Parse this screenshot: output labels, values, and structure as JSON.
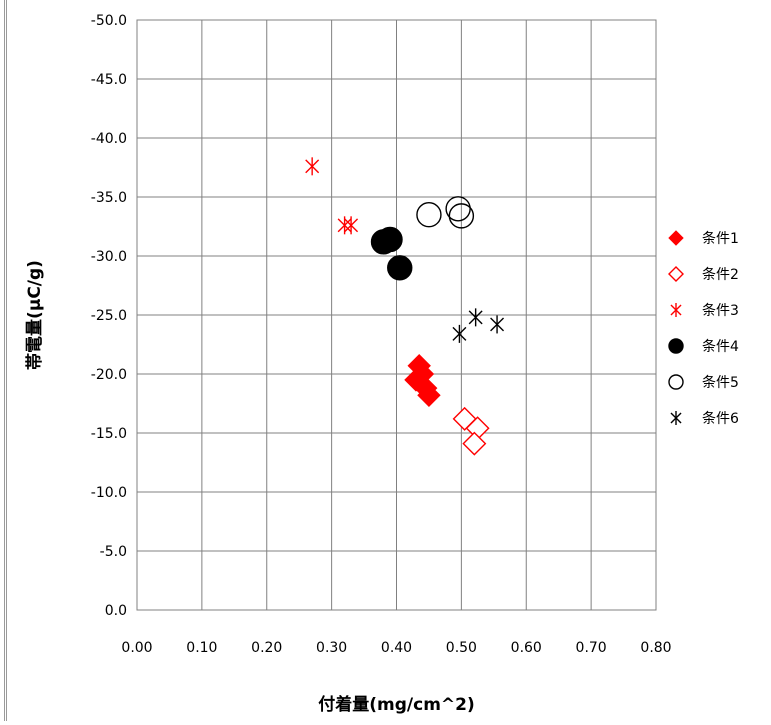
{
  "chart_data": {
    "type": "scatter",
    "title": "",
    "xlabel": "付着量(mg/cm^2)",
    "ylabel": "帯電量(μC/g)",
    "xlim": [
      0.0,
      0.8
    ],
    "ylim": [
      0.0,
      -50.0
    ],
    "x_ticks": [
      "0.00",
      "0.10",
      "0.20",
      "0.30",
      "0.40",
      "0.50",
      "0.60",
      "0.70",
      "0.80"
    ],
    "y_ticks": [
      "0.0",
      "-5.0",
      "-10.0",
      "-15.0",
      "-20.0",
      "-25.0",
      "-30.0",
      "-35.0",
      "-40.0",
      "-45.0",
      "-50.0"
    ],
    "grid": true,
    "legend_position": "right",
    "series": [
      {
        "name": "条件1",
        "marker": "diamond-filled",
        "color": "#ff0000",
        "points": [
          [
            0.435,
            -20.7
          ],
          [
            0.44,
            -20.0
          ],
          [
            0.43,
            -19.5
          ],
          [
            0.445,
            -18.8
          ],
          [
            0.45,
            -18.2
          ]
        ]
      },
      {
        "name": "条件2",
        "marker": "diamond-open",
        "color": "#ff0000",
        "points": [
          [
            0.505,
            -16.2
          ],
          [
            0.525,
            -15.4
          ],
          [
            0.52,
            -14.1
          ]
        ]
      },
      {
        "name": "条件3",
        "marker": "asterisk",
        "color": "#ff0000",
        "points": [
          [
            0.27,
            -37.6
          ],
          [
            0.32,
            -32.6
          ],
          [
            0.33,
            -32.6
          ]
        ]
      },
      {
        "name": "条件4",
        "marker": "circle-filled",
        "color": "#000000",
        "points": [
          [
            0.38,
            -31.2
          ],
          [
            0.39,
            -31.4
          ],
          [
            0.405,
            -29.0
          ]
        ]
      },
      {
        "name": "条件5",
        "marker": "circle-open",
        "color": "#000000",
        "points": [
          [
            0.45,
            -33.5
          ],
          [
            0.495,
            -34.0
          ],
          [
            0.5,
            -33.4
          ]
        ]
      },
      {
        "name": "条件6",
        "marker": "asterisk",
        "color": "#000000",
        "points": [
          [
            0.497,
            -23.4
          ],
          [
            0.522,
            -24.8
          ],
          [
            0.555,
            -24.2
          ]
        ]
      }
    ]
  }
}
